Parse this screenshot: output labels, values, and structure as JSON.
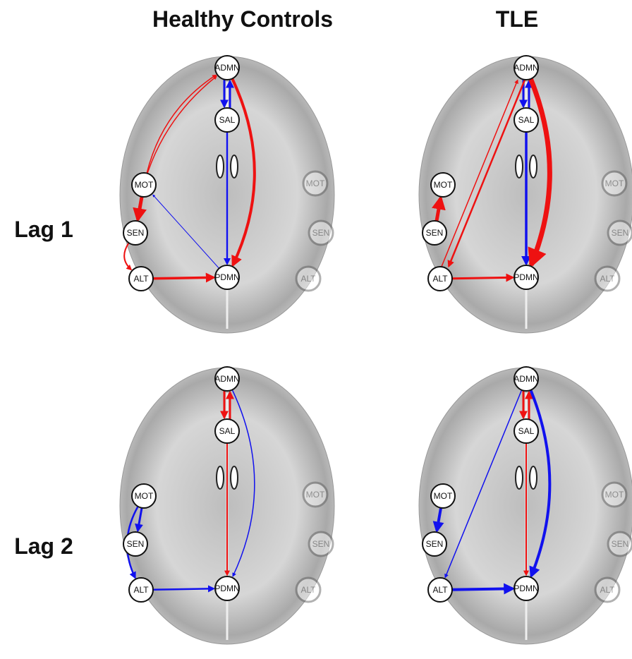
{
  "columns": [
    "Healthy Controls",
    "TLE"
  ],
  "rows": [
    "Lag 1",
    "Lag 2"
  ],
  "panels": [
    {
      "nodes": [
        "ADMN",
        "SAL",
        "MOT",
        "SEN",
        "ALT",
        "PDMN",
        "MOT",
        "SEN",
        "ALT"
      ]
    },
    {
      "nodes": [
        "ADMN",
        "SAL",
        "MOT",
        "SEN",
        "ALT",
        "PDMN",
        "MOT",
        "SEN",
        "ALT"
      ]
    },
    {
      "nodes": [
        "ADMN",
        "SAL",
        "MOT",
        "SEN",
        "ALT",
        "PDMN",
        "MOT",
        "SEN",
        "ALT"
      ]
    },
    {
      "nodes": [
        "ADMN",
        "SAL",
        "MOT",
        "SEN",
        "ALT",
        "PDMN",
        "MOT",
        "SEN",
        "ALT"
      ]
    }
  ]
}
